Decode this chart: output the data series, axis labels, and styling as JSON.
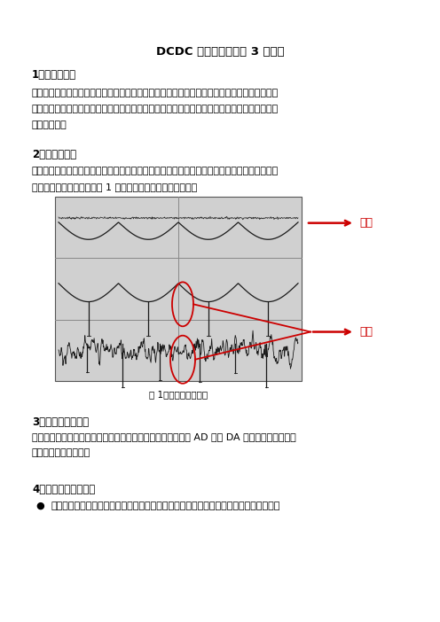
{
  "title": "DCDC 降低纹波噪声的 3 种方法",
  "section1_title": "1、纹波的定义",
  "section1_body_lines": [
    "纹波是指在直流电压或电流上，有规律的叠加在直流稳定量上的交流分量。现实中的电压和电流",
    "并不是完全稳定的一条直线，而是叠加有很多的波动，并且这些波动的频率是固定的，把这些波",
    "动叫做纹波。"
  ],
  "section2_title": "2、噪声的定义",
  "section2_body_lines": [
    "噪声是指叠加在纹波之上，非连续存在并无规律的电压或者电流尖峰。也就是说噪声指的是叠加",
    "在纹波上的杂波。下面的图 1 很好的描述了什么是纹波噪声。"
  ],
  "fig_caption": "图 1：纹波噪声展示图",
  "section3_title": "3、纹波噪声的危害",
  "section3_body_lines": [
    "当电源的纹波噪声过大时，它们可能会影响运放的精度，干扰 AD 或者 DA 模块的工作，使得整",
    "机的精度大幅度下降。"
  ],
  "section4_title": "4、如何降低纹波噪声",
  "section4_bullet": "降低开关器件动作带来的纹波噪声：设计人员在实际的开发过程中，需要根据实际的电路",
  "label_ripple": "纹波",
  "label_noise": "噪声",
  "bg_color": "#ffffff",
  "text_color": "#000000",
  "arrow_color": "#cc0000",
  "fig_bg_color": "#d0d0d0",
  "fig_grid_color": "#888888",
  "wave_color": "#1a1a1a"
}
